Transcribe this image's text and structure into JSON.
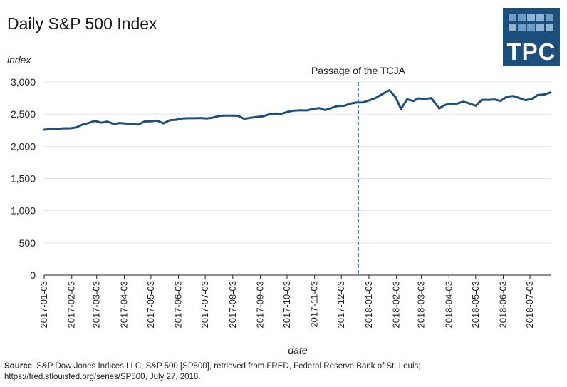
{
  "title": "Daily S&P 500 Index",
  "logo": {
    "text": "TPC"
  },
  "source": {
    "label": "Source",
    "text": ": S&P Dow Jones Indices LLC, S&P 500 [SP500], retrieved from FRED, Federal Reserve Bank of St. Louis; https://fred.stlouisfed.org/series/SP500, July 27, 2018."
  },
  "chart_data": {
    "type": "line",
    "title": "Daily S&P 500 Index",
    "ylabel": "index",
    "xlabel": "date",
    "ylim": [
      0,
      3000
    ],
    "xlim": [
      "2017-01-03",
      "2018-07-27"
    ],
    "yticks": [
      0,
      500,
      1000,
      1500,
      2000,
      2500,
      3000
    ],
    "ytick_labels": [
      "0",
      "500",
      "1,000",
      "1,500",
      "2,000",
      "2,500",
      "3,000"
    ],
    "xticks": [
      "2017-01-03",
      "2017-02-03",
      "2017-03-03",
      "2017-04-03",
      "2017-05-03",
      "2017-06-03",
      "2017-07-03",
      "2017-08-03",
      "2017-09-03",
      "2017-10-03",
      "2017-11-03",
      "2017-12-03",
      "2018-01-03",
      "2018-02-03",
      "2018-03-03",
      "2018-04-03",
      "2018-05-03",
      "2018-06-03",
      "2018-07-03"
    ],
    "grid": "horizontal",
    "line_color": "#1d4f7c",
    "annotation": {
      "date": "2017-12-22",
      "label": "Passage of the TCJA",
      "color": "#2a93c9"
    },
    "series": [
      {
        "x": [
          "2017-01-03",
          "2017-01-10",
          "2017-01-18",
          "2017-01-25",
          "2017-02-01",
          "2017-02-08",
          "2017-02-15",
          "2017-02-22",
          "2017-03-01",
          "2017-03-08",
          "2017-03-15",
          "2017-03-22",
          "2017-03-29",
          "2017-04-05",
          "2017-04-12",
          "2017-04-19",
          "2017-04-26",
          "2017-05-03",
          "2017-05-10",
          "2017-05-17",
          "2017-05-24",
          "2017-05-31",
          "2017-06-07",
          "2017-06-14",
          "2017-06-21",
          "2017-06-28",
          "2017-07-05",
          "2017-07-12",
          "2017-07-19",
          "2017-07-26",
          "2017-08-02",
          "2017-08-09",
          "2017-08-16",
          "2017-08-23",
          "2017-08-30",
          "2017-09-06",
          "2017-09-13",
          "2017-09-20",
          "2017-09-27",
          "2017-10-04",
          "2017-10-11",
          "2017-10-18",
          "2017-10-25",
          "2017-11-01",
          "2017-11-08",
          "2017-11-15",
          "2017-11-22",
          "2017-11-29",
          "2017-12-06",
          "2017-12-13",
          "2017-12-20",
          "2017-12-27",
          "2018-01-03",
          "2018-01-10",
          "2018-01-17",
          "2018-01-26",
          "2018-02-02",
          "2018-02-08",
          "2018-02-15",
          "2018-02-22",
          "2018-02-27",
          "2018-03-08",
          "2018-03-14",
          "2018-03-23",
          "2018-03-29",
          "2018-04-05",
          "2018-04-12",
          "2018-04-19",
          "2018-04-26",
          "2018-05-03",
          "2018-05-10",
          "2018-05-17",
          "2018-05-24",
          "2018-05-31",
          "2018-06-07",
          "2018-06-14",
          "2018-06-21",
          "2018-06-28",
          "2018-07-05",
          "2018-07-12",
          "2018-07-19",
          "2018-07-26"
        ],
        "values": [
          2258,
          2268,
          2271,
          2280,
          2279,
          2294,
          2337,
          2362,
          2396,
          2367,
          2385,
          2348,
          2362,
          2353,
          2344,
          2338,
          2387,
          2388,
          2399,
          2357,
          2404,
          2412,
          2432,
          2437,
          2436,
          2440,
          2433,
          2447,
          2473,
          2478,
          2477,
          2474,
          2427,
          2444,
          2457,
          2465,
          2498,
          2508,
          2507,
          2537,
          2555,
          2561,
          2557,
          2579,
          2594,
          2564,
          2597,
          2627,
          2629,
          2663,
          2680,
          2682,
          2713,
          2748,
          2803,
          2873,
          2762,
          2581,
          2731,
          2703,
          2744,
          2738,
          2750,
          2588,
          2640,
          2662,
          2664,
          2693,
          2666,
          2630,
          2723,
          2720,
          2728,
          2705,
          2770,
          2782,
          2750,
          2717,
          2736,
          2798,
          2804,
          2837
        ]
      }
    ]
  }
}
